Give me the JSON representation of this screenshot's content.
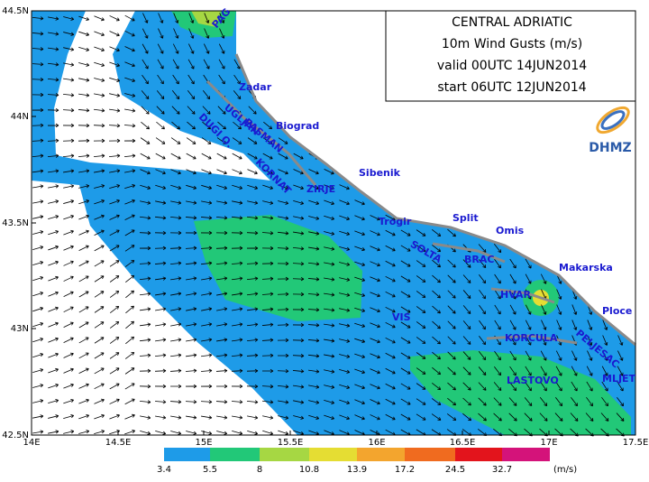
{
  "header": {
    "lines": [
      "CENTRAL ADRIATIC",
      "10m Wind Gusts (m/s)",
      "valid 00UTC 14JUN2014",
      "start 06UTC 12JUN2014"
    ]
  },
  "logo": "DHMZ",
  "axes": {
    "lon_labels": [
      "14E",
      "14.5E",
      "15E",
      "15.5E",
      "16E",
      "16.5E",
      "17E",
      "17.5E"
    ],
    "lat_labels": [
      "44.5N",
      "44N",
      "43.5N",
      "43N",
      "42.5N"
    ]
  },
  "places": [
    "PAG",
    "Zadar",
    "UGLJAN",
    "PASMAN",
    "Biograd",
    "DUGI O.",
    "KORNAT",
    "Sibenik",
    "ZIRJE",
    "Trogir",
    "Split",
    "Omis",
    "SOLTA",
    "BRAC",
    "Makarska",
    "HVAR",
    "VIS",
    "Ploce",
    "KORCULA",
    "PELJESAC",
    "MLJET",
    "LASTOVO"
  ],
  "legend": {
    "ticks": [
      3.4,
      5.5,
      8,
      10.8,
      13.9,
      17.2,
      24.5,
      32.7
    ],
    "colors": [
      "#1e9be8",
      "#22c878",
      "#a6d743",
      "#e5dd33",
      "#f3a52e",
      "#f06b1f",
      "#e3141c",
      "#d4137a"
    ],
    "unit": "(m/s)"
  }
}
